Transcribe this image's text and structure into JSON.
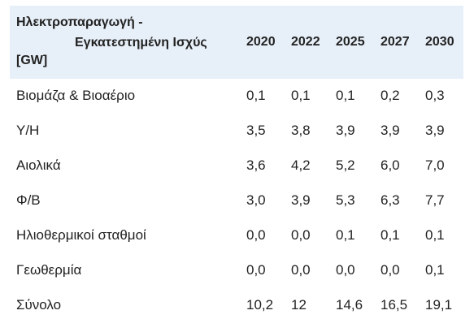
{
  "header": {
    "title_line1": "Ηλεκτροπαραγωγή -",
    "title_line2": "Εγκατεστημένη Ισχύς",
    "unit": "[GW]",
    "years": [
      "2020",
      "2022",
      "2025",
      "2027",
      "2030"
    ]
  },
  "rows": [
    {
      "label": "Βιομάζα & Βιοαέριο",
      "values": [
        "0,1",
        "0,1",
        "0,1",
        "0,2",
        "0,3"
      ]
    },
    {
      "label": "Υ/Η",
      "values": [
        "3,5",
        "3,8",
        "3,9",
        "3,9",
        "3,9"
      ]
    },
    {
      "label": "Αιολικά",
      "values": [
        "3,6",
        "4,2",
        "5,2",
        "6,0",
        "7,0"
      ]
    },
    {
      "label": "Φ/Β",
      "values": [
        "3,0",
        "3,9",
        "5,3",
        "6,3",
        "7,7"
      ]
    },
    {
      "label": "Ηλιοθερμικοί σταθμοί",
      "values": [
        "0,0",
        "0,0",
        "0,1",
        "0,1",
        "0,1"
      ]
    },
    {
      "label": "Γεωθερμία",
      "values": [
        "0,0",
        "0,0",
        "0,0",
        "0,0",
        "0,1"
      ]
    },
    {
      "label": "Σύνολο",
      "values": [
        "10,2",
        "12",
        "14,6",
        "16,5",
        "19,1"
      ]
    }
  ]
}
